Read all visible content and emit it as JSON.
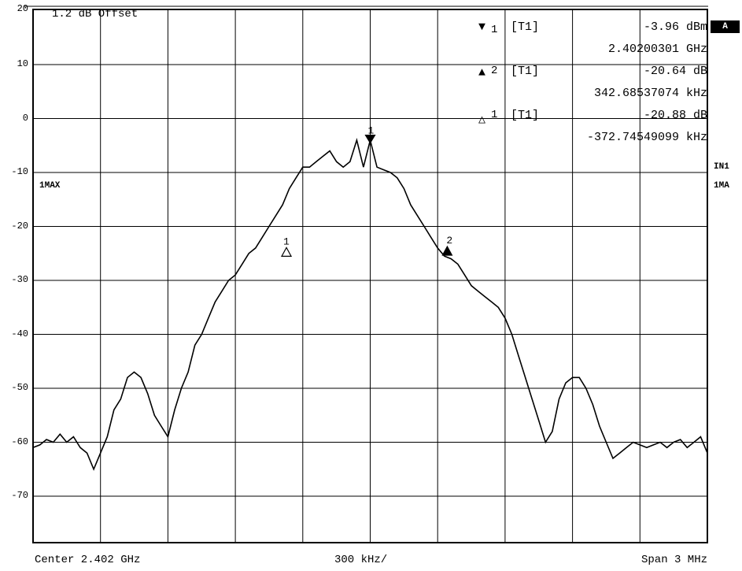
{
  "header": {
    "offset_label": "1.2 dB Offset",
    "trace_left_label": "1MAX",
    "trace_right_label_1": "IN1",
    "trace_right_label_2": "1MA",
    "badge": "A"
  },
  "markers": [
    {
      "symbol": "▼",
      "index": "1",
      "tag": "[T1]",
      "value": "-3.96 dBm",
      "freq": "2.40200301 GHz"
    },
    {
      "symbol": "▲",
      "index": "2",
      "tag": "[T1]",
      "value": "-20.64 dB",
      "freq": "342.68537074 kHz"
    },
    {
      "symbol": "△",
      "index": "1",
      "tag": "[T1]",
      "value": "-20.88 dB",
      "freq": "-372.74549099 kHz"
    }
  ],
  "footer": {
    "center": "Center 2.402 GHz",
    "per_div": "300 kHz/",
    "span": "Span 3 MHz"
  },
  "chart_data": {
    "type": "line",
    "xlabel": "",
    "ylabel": "",
    "xlim": [
      -1500,
      1500
    ],
    "ylim": [
      -80,
      20
    ],
    "yticks": [
      20,
      10,
      0,
      -10,
      -20,
      -30,
      -40,
      -50,
      -60,
      -70
    ],
    "grid": true,
    "series": [
      {
        "x": [
          -1500,
          -1470,
          -1440,
          -1410,
          -1380,
          -1350,
          -1320,
          -1290,
          -1260,
          -1230,
          -1200,
          -1170,
          -1140,
          -1110,
          -1080,
          -1050,
          -1020,
          -990,
          -960,
          -930,
          -900,
          -870,
          -840,
          -810,
          -780,
          -750,
          -720,
          -690,
          -660,
          -630,
          -600,
          -570,
          -540,
          -510,
          -480,
          -450,
          -420,
          -390,
          -360,
          -330,
          -300,
          -270,
          -240,
          -210,
          -180,
          -150,
          -120,
          -90,
          -60,
          -30,
          0,
          30,
          60,
          90,
          120,
          150,
          180,
          210,
          240,
          270,
          300,
          330,
          360,
          390,
          420,
          450,
          480,
          510,
          540,
          570,
          600,
          630,
          660,
          690,
          720,
          750,
          780,
          810,
          840,
          870,
          900,
          930,
          960,
          990,
          1020,
          1050,
          1080,
          1110,
          1140,
          1170,
          1200,
          1230,
          1260,
          1290,
          1320,
          1350,
          1380,
          1410,
          1440,
          1470,
          1500
        ],
        "values": [
          -61,
          -60.5,
          -59.5,
          -60,
          -58.5,
          -60,
          -59,
          -61,
          -62,
          -65,
          -62,
          -59,
          -54,
          -52,
          -48,
          -47,
          -48,
          -51,
          -55,
          -57,
          -59,
          -54,
          -50,
          -47,
          -42,
          -40,
          -37,
          -34,
          -32,
          -30,
          -29,
          -27,
          -25,
          -24,
          -22,
          -20,
          -18,
          -16,
          -13,
          -11,
          -9,
          -9,
          -8,
          -7,
          -6,
          -8,
          -9,
          -8,
          -4,
          -9,
          -4,
          -9,
          -9.5,
          -10,
          -11,
          -13,
          -16,
          -18,
          -20,
          -22,
          -24,
          -25.5,
          -26,
          -27,
          -29,
          -31,
          -32,
          -33,
          -34,
          -35,
          -37,
          -40,
          -44,
          -48,
          -52,
          -56,
          -60,
          -58,
          -52,
          -49,
          -48,
          -48,
          -50,
          -53,
          -57,
          -60,
          -63,
          -62,
          -61,
          -60,
          -60.5,
          -61,
          -60.5,
          -60,
          -61,
          -60,
          -59.5,
          -61,
          -60,
          -59,
          -62
        ]
      }
    ],
    "markers": [
      {
        "label": "1",
        "symbol": "down-triangle",
        "x": 0,
        "y": -3.96
      },
      {
        "label": "2",
        "symbol": "filled-triangle",
        "x": 342.7,
        "y": -24.6
      },
      {
        "label": "1",
        "symbol": "open-triangle",
        "x": -372.7,
        "y": -24.8
      }
    ]
  }
}
